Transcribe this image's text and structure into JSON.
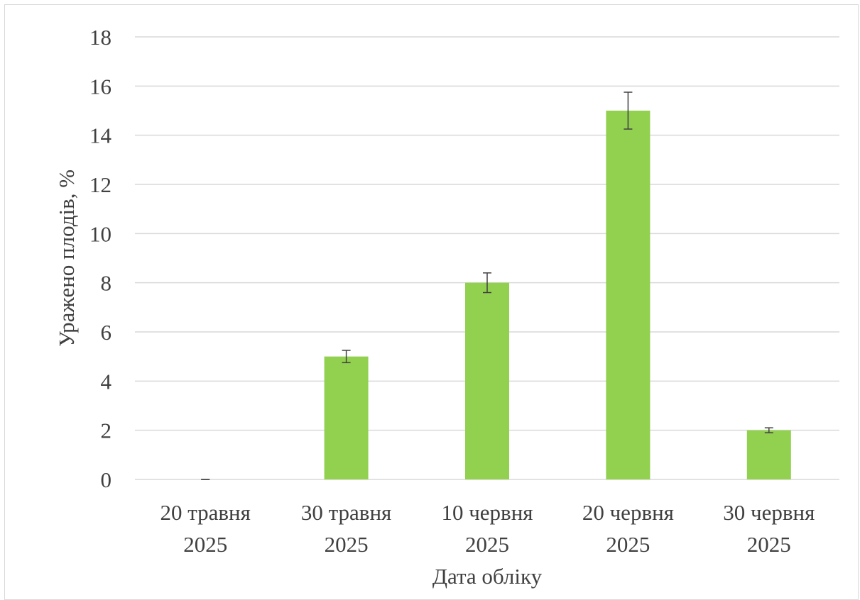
{
  "chart_data": {
    "type": "bar",
    "categories": [
      [
        "20 травня",
        "2025"
      ],
      [
        "30 травня",
        "2025"
      ],
      [
        "10 червня",
        "2025"
      ],
      [
        "20 червня",
        "2025"
      ],
      [
        "30 червня",
        "2025"
      ]
    ],
    "values": [
      0,
      5,
      8,
      15,
      2
    ],
    "error_bars": [
      0,
      0.25,
      0.4,
      0.75,
      0.1
    ],
    "xlabel": "Дата обліку",
    "ylabel": "Уражено плодів, %",
    "ylim": [
      0,
      18
    ],
    "yticks": [
      0,
      2,
      4,
      6,
      8,
      10,
      12,
      14,
      16,
      18
    ],
    "grid": true,
    "legend": "none",
    "colors": {
      "bar": "#92d050",
      "grid": "#d9d9d9",
      "error_bar": "#404040",
      "text": "#404040"
    }
  }
}
